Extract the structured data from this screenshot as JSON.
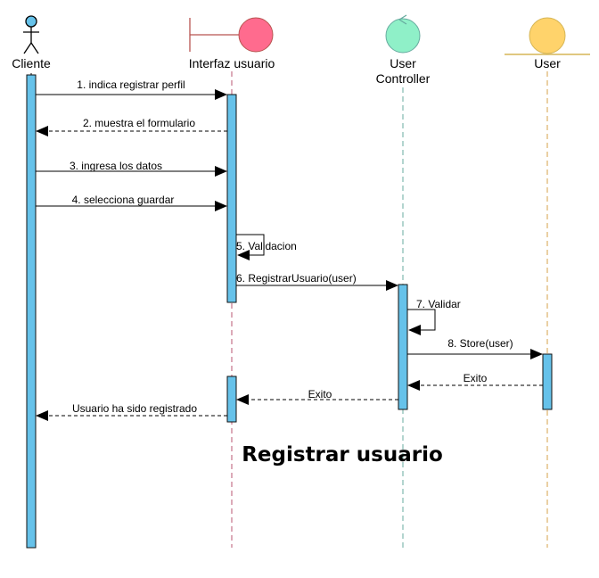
{
  "title": "Registrar usuario",
  "colors": {
    "activation": "#66c2ea",
    "activation_border": "#111111",
    "boundary": "#ff6b8e",
    "boundary_line": "#b85450",
    "controller": "#8ff0c8",
    "entity": "#ffd36b",
    "entity_line": "#d6b656",
    "lifeline_cliente": "#000000",
    "lifeline_interfaz": "#b85470",
    "lifeline_controller": "#67ab9f",
    "lifeline_user": "#d6a24a"
  },
  "participants": {
    "cliente": {
      "label": "Cliente",
      "icon": "actor-icon"
    },
    "interfaz": {
      "label": "Interfaz usuario",
      "icon": "boundary-icon"
    },
    "controller": {
      "label_line1": "User",
      "label_line2": "Controller",
      "icon": "control-icon"
    },
    "user": {
      "label": "User",
      "icon": "entity-icon"
    }
  },
  "messages": {
    "m1": "1. indica registrar perfil",
    "m2": "2. muestra el formulario",
    "m3": "3. ingresa los datos",
    "m4": "4. selecciona guardar",
    "m5": "5. Validacion",
    "m6": "6. RegistrarUsuario(user)",
    "m7": "7. Validar",
    "m8": "8. Store(user)",
    "m9": "Exito",
    "m10": "Exito",
    "m11": "Usuario ha sido  registrado"
  }
}
